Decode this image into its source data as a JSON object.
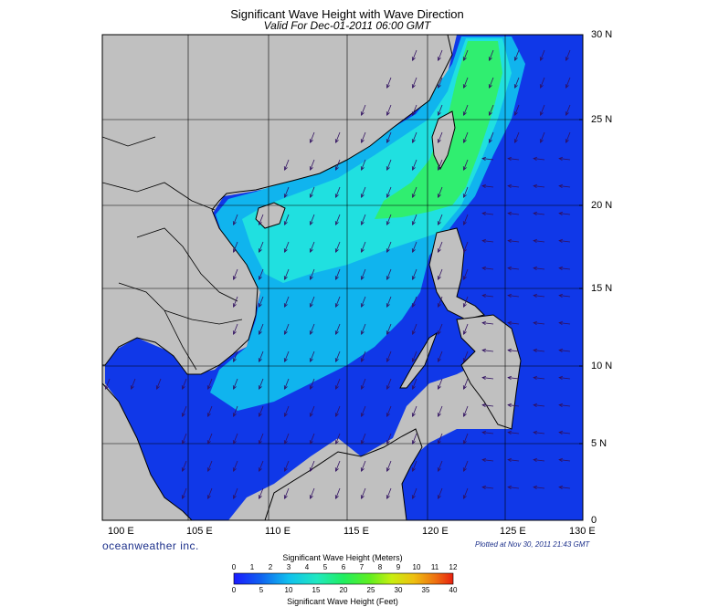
{
  "title": "Significant Wave Height with Wave Direction",
  "subtitle": "Valid For Dec-01-2011 06:00 GMT",
  "brand": "oceanweather inc.",
  "plotted": "Plotted at Nov 30, 2011 21:43 GMT",
  "lat_labels": [
    "30 N",
    "25 N",
    "20 N",
    "15 N",
    "10 N",
    "5 N",
    "0"
  ],
  "lon_labels": [
    "100 E",
    "105 E",
    "110 E",
    "115 E",
    "120 E",
    "125 E",
    "130 E"
  ],
  "colorbar": {
    "title_top": "Significant Wave Height (Meters)",
    "title_bottom": "Significant Wave Height (Feet)",
    "meters_ticks": [
      "0",
      "1",
      "2",
      "3",
      "4",
      "5",
      "6",
      "7",
      "8",
      "9",
      "10",
      "11",
      "12"
    ],
    "feet_ticks": [
      "0",
      "5",
      "10",
      "15",
      "20",
      "25",
      "30",
      "35",
      "40"
    ],
    "colors": [
      "#1a1aff",
      "#1040ee",
      "#1080f0",
      "#10c8ee",
      "#20e8c8",
      "#20ee80",
      "#30ee30",
      "#90ee10",
      "#d8ee10",
      "#eec010",
      "#ee8010",
      "#e83010"
    ]
  },
  "colors": {
    "land": "#c0c0c0",
    "sea_dark": "#1030e0",
    "sea_mid": "#10a8ee",
    "sea_high": "#30e8a0",
    "arrow": "#301060"
  }
}
